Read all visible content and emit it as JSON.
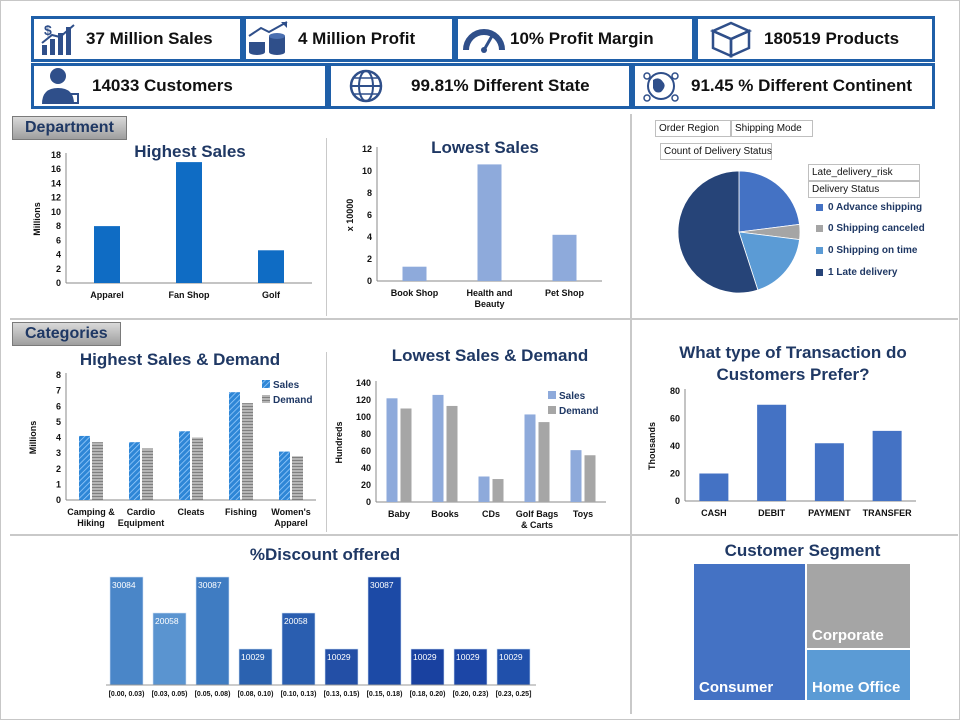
{
  "kpis": [
    {
      "label": "37 Million Sales",
      "icon": "sales-chart-icon"
    },
    {
      "label": "4 Million Profit",
      "icon": "coins-profit-icon"
    },
    {
      "label": "10% Profit Margin",
      "icon": "gauge-icon"
    },
    {
      "label": "180519 Products",
      "icon": "box-icon"
    },
    {
      "label": "14033 Customers",
      "icon": "customer-icon"
    },
    {
      "label": "99.81% Different State",
      "icon": "globe-icon"
    },
    {
      "label": "91.45 % Different Continent",
      "icon": "world-network-icon"
    }
  ],
  "sections": {
    "department": "Department",
    "categories": "Categories"
  },
  "pivot": {
    "order_region": "Order Region",
    "shipping_mode": "Shipping Mode",
    "count_delivery": "Count of Delivery Status",
    "late_risk": "Late_delivery_risk",
    "delivery_status": "Delivery Status"
  },
  "chart_data": [
    {
      "id": "dept_high",
      "type": "bar",
      "title": "Highest Sales",
      "ylabel": "Millions",
      "categories": [
        "Apparel",
        "Fan Shop",
        "Golf"
      ],
      "values": [
        8,
        17,
        4.6
      ],
      "ylim": [
        0,
        18
      ],
      "yticks": [
        "0",
        "2",
        "4",
        "6",
        "8",
        "10",
        "12",
        "14",
        "16",
        "18"
      ],
      "color": "#0f6cc4"
    },
    {
      "id": "dept_low",
      "type": "bar",
      "title": "Lowest Sales",
      "ylabel": "x 10000",
      "categories": [
        "Book Shop",
        "Health and Beauty",
        "Pet Shop"
      ],
      "values": [
        1.3,
        10.6,
        4.2
      ],
      "ylim": [
        0,
        12
      ],
      "yticks": [
        "0",
        "2",
        "4",
        "6",
        "8",
        "10",
        "12"
      ],
      "color": "#8eaadb"
    },
    {
      "id": "delivery_pie",
      "type": "pie",
      "legend": [
        "0 Advance shipping",
        "0 Shipping canceled",
        "0 Shipping on time",
        "1 Late delivery"
      ],
      "values": [
        23,
        4,
        18,
        55
      ],
      "colors": [
        "#4472c4",
        "#a5a5a5",
        "#5b9bd5",
        "#264478"
      ]
    },
    {
      "id": "cat_high",
      "type": "bar",
      "title": "Highest Sales & Demand",
      "ylabel": "Millions",
      "categories": [
        "Camping & Hiking",
        "Cardio Equipment",
        "Cleats",
        "Fishing",
        "Women's Apparel"
      ],
      "series": [
        {
          "name": "Sales",
          "values": [
            4.1,
            3.7,
            4.4,
            6.9,
            3.1
          ],
          "color": "#2e86d6"
        },
        {
          "name": "Demand",
          "values": [
            3.7,
            3.3,
            4.0,
            6.2,
            2.8
          ],
          "color": "#a6a6a6"
        }
      ],
      "ylim": [
        0,
        8
      ],
      "yticks": [
        "0",
        "1",
        "2",
        "3",
        "4",
        "5",
        "6",
        "7",
        "8"
      ]
    },
    {
      "id": "cat_low",
      "type": "bar",
      "title": "Lowest Sales & Demand",
      "ylabel": "Hundreds",
      "categories": [
        "Baby",
        "Books",
        "CDs",
        "Golf Bags & Carts",
        "Toys"
      ],
      "series": [
        {
          "name": "Sales",
          "values": [
            122,
            126,
            30,
            103,
            61
          ],
          "color": "#8eaadb"
        },
        {
          "name": "Demand",
          "values": [
            110,
            113,
            27,
            94,
            55
          ],
          "color": "#a6a6a6"
        }
      ],
      "ylim": [
        0,
        140
      ],
      "yticks": [
        "0",
        "20",
        "40",
        "60",
        "80",
        "100",
        "120",
        "140"
      ]
    },
    {
      "id": "transaction",
      "type": "bar",
      "title": "What type of Transaction do Customers Prefer?",
      "ylabel": "Thousands",
      "categories": [
        "CASH",
        "DEBIT",
        "PAYMENT",
        "TRANSFER"
      ],
      "values": [
        20,
        70,
        42,
        51
      ],
      "ylim": [
        0,
        80
      ],
      "yticks": [
        "0",
        "20",
        "40",
        "60",
        "80"
      ],
      "color": "#4472c4"
    },
    {
      "id": "discount",
      "type": "bar",
      "title": "%Discount offered",
      "categories": [
        "[0.00, 0.03)",
        "[0.03, 0.05)",
        "[0.05, 0.08)",
        "[0.08, 0.10)",
        "[0.10, 0.13)",
        "[0.13, 0.15)",
        "[0.15, 0.18)",
        "[0.18, 0.20)",
        "[0.20, 0.23)",
        "[0.23, 0.25]"
      ],
      "values": [
        30084,
        20058,
        30087,
        10029,
        20058,
        10029,
        30087,
        10029,
        10029,
        10029
      ],
      "labels": [
        "30084",
        "20058",
        "30087",
        "10029",
        "20058",
        "10029",
        "30087",
        "10029",
        "10029",
        "10029"
      ],
      "ylim": [
        0,
        30087
      ]
    },
    {
      "id": "segment",
      "type": "treemap",
      "title": "Customer Segment",
      "categories": [
        "Consumer",
        "Corporate",
        "Home Office"
      ],
      "colors": [
        "#4472c4",
        "#a5a5a5",
        "#5b9bd5"
      ]
    }
  ]
}
